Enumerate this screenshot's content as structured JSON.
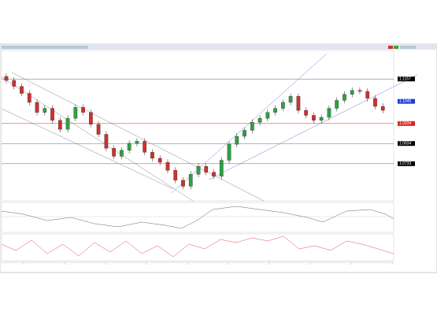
{
  "chart_data": {
    "type": "candlestick",
    "open": [
      1.117,
      1.115,
      1.112,
      1.1085,
      1.104,
      1.099,
      1.101,
      1.095,
      1.0905,
      1.096,
      1.1015,
      1.099,
      1.093,
      1.088,
      1.081,
      1.077,
      1.08,
      1.0835,
      1.0845,
      1.079,
      1.076,
      1.074,
      1.07,
      1.065,
      1.062,
      1.068,
      1.072,
      1.069,
      1.067,
      1.075,
      1.083,
      1.087,
      1.09,
      1.094,
      1.096,
      1.099,
      1.101,
      1.104,
      1.107,
      1.1,
      1.0975,
      1.095,
      1.0965,
      1.101,
      1.105,
      1.108,
      1.11,
      1.1095,
      1.106,
      1.102
    ],
    "high": [
      1.1185,
      1.1165,
      1.1135,
      1.11,
      1.1055,
      1.1025,
      1.1025,
      1.0965,
      1.0975,
      1.103,
      1.103,
      1.1005,
      1.0945,
      1.0895,
      1.0825,
      1.0815,
      1.085,
      1.086,
      1.086,
      1.0805,
      1.0775,
      1.0755,
      1.0715,
      1.0665,
      1.0695,
      1.0735,
      1.0735,
      1.0705,
      1.0765,
      1.0845,
      1.0885,
      1.0915,
      1.0955,
      1.0975,
      1.1005,
      1.1025,
      1.1055,
      1.1085,
      1.1085,
      1.1015,
      1.099,
      1.098,
      1.1025,
      1.1065,
      1.1095,
      1.1115,
      1.1115,
      1.111,
      1.1075,
      1.1035
    ],
    "low": [
      1.1135,
      1.1105,
      1.107,
      1.1025,
      1.0975,
      1.0975,
      1.0935,
      1.089,
      1.089,
      1.0945,
      1.0975,
      1.0915,
      1.0865,
      1.0795,
      1.0755,
      1.0755,
      1.0785,
      1.082,
      1.0775,
      1.0745,
      1.0725,
      1.0685,
      1.0635,
      1.0605,
      1.0605,
      1.0665,
      1.0675,
      1.0655,
      1.0655,
      1.0735,
      1.0815,
      1.0855,
      1.0885,
      1.0925,
      1.0945,
      1.0975,
      1.0995,
      1.1025,
      1.0985,
      1.096,
      1.0935,
      1.0935,
      1.095,
      1.0995,
      1.1035,
      1.1065,
      1.108,
      1.1045,
      1.1005,
      1.0985
    ],
    "close": [
      1.115,
      1.112,
      1.1085,
      1.104,
      1.099,
      1.101,
      1.095,
      1.0905,
      1.096,
      1.1015,
      1.099,
      1.093,
      1.088,
      1.081,
      1.077,
      1.08,
      1.0835,
      1.0845,
      1.079,
      1.076,
      1.074,
      1.07,
      1.065,
      1.062,
      1.068,
      1.072,
      1.069,
      1.067,
      1.075,
      1.083,
      1.087,
      1.09,
      1.094,
      1.096,
      1.099,
      1.101,
      1.104,
      1.107,
      1.1,
      1.0975,
      1.095,
      1.0965,
      1.101,
      1.105,
      1.108,
      1.11,
      1.1095,
      1.106,
      1.102,
      1.1
    ],
    "up_color": "#2ea043",
    "down_color": "#d03030",
    "ylim": [
      1.0547,
      1.13
    ],
    "yticks": [
      1.0733,
      1.0834,
      1.0934,
      1.1045,
      1.1157
    ],
    "ytick_colors": [
      "#000000",
      "#000000",
      "#dd2222",
      "#1a3fd6",
      "#000000"
    ],
    "grid": true
  }
}
